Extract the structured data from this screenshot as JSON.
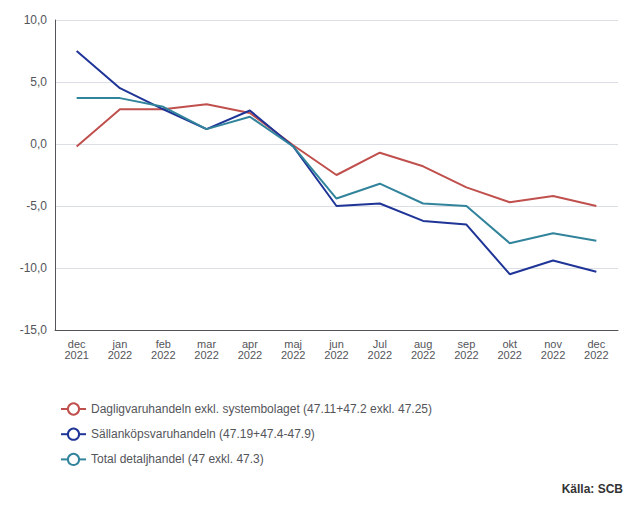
{
  "chart_data": {
    "type": "line",
    "categories": [
      "dec\n2021",
      "jan\n2022",
      "feb\n2022",
      "mar\n2022",
      "apr\n2022",
      "maj\n2022",
      "jun\n2022",
      "Jul\n2022",
      "aug\n2022",
      "sep\n2022",
      "okt\n2022",
      "nov\n2022",
      "dec\n2022"
    ],
    "series": [
      {
        "name": "Dagligvaruhandeln exkl. systembolaget (47.11+47.2 exkl. 47.25)",
        "color": "#C0504D",
        "values": [
          -0.2,
          2.8,
          2.8,
          3.2,
          2.5,
          -0.1,
          -2.5,
          -0.7,
          -1.8,
          -3.5,
          -4.7,
          -4.2,
          -5.0
        ]
      },
      {
        "name": "Sällanköpsvaruhandeln (47.19+47.4-47.9)",
        "color": "#1F3497",
        "values": [
          7.5,
          4.5,
          2.8,
          1.2,
          2.7,
          -0.2,
          -5.0,
          -4.8,
          -6.2,
          -6.5,
          -10.5,
          -9.4,
          -10.3
        ]
      },
      {
        "name": "Total detaljhandel (47 exkl. 47.3)",
        "color": "#31849B",
        "values": [
          3.7,
          3.7,
          3.0,
          1.2,
          2.2,
          -0.2,
          -4.4,
          -3.2,
          -4.8,
          -5.0,
          -8.0,
          -7.2,
          -7.8
        ]
      }
    ],
    "ylim": [
      -15,
      10
    ],
    "yticks": [
      {
        "value": -15,
        "label": "-15,0"
      },
      {
        "value": -10,
        "label": "-10,0"
      },
      {
        "value": -5,
        "label": "-5,0"
      },
      {
        "value": 0,
        "label": "0,0"
      },
      {
        "value": 5,
        "label": "5,0"
      },
      {
        "value": 10,
        "label": "10,0"
      }
    ],
    "grid": true,
    "legend": "bottom",
    "annotations": [
      "Källa: SCB"
    ]
  }
}
